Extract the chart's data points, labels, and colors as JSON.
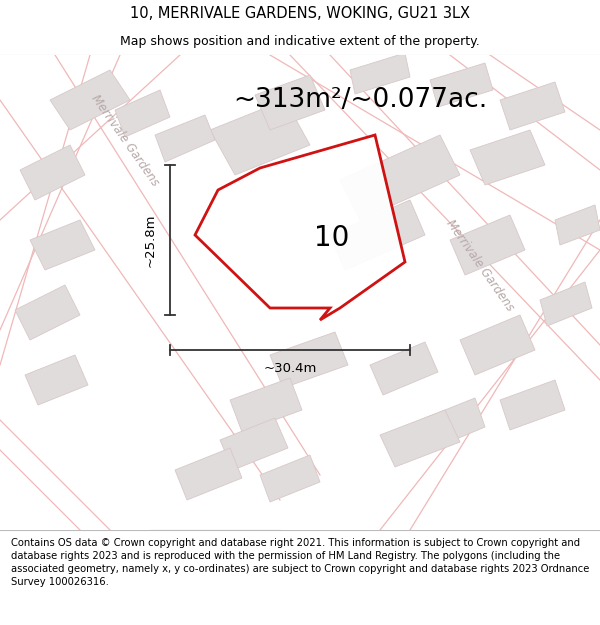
{
  "title": "10, MERRIVALE GARDENS, WOKING, GU21 3LX",
  "subtitle": "Map shows position and indicative extent of the property.",
  "area_text": "~313m²/~0.077ac.",
  "number_label": "10",
  "dim_width": "~30.4m",
  "dim_height": "~25.8m",
  "footer_text": "Contains OS data © Crown copyright and database right 2021. This information is subject to Crown copyright and database rights 2023 and is reproduced with the permission of HM Land Registry. The polygons (including the associated geometry, namely x, y co-ordinates) are subject to Crown copyright and database rights 2023 Ordnance Survey 100026316.",
  "title_fontsize": 10.5,
  "subtitle_fontsize": 9,
  "area_fontsize": 19,
  "number_fontsize": 20,
  "dim_fontsize": 9.5,
  "footer_fontsize": 7.2,
  "plot_color_stroke": "#cc0000",
  "street_color": "#f0b8b8",
  "building_color": "#e0dcdc",
  "building_edge": "#d8c8c8",
  "dim_color": "#333333",
  "street_label_color": "#b8a8a8",
  "map_bg": "#ede8e8"
}
